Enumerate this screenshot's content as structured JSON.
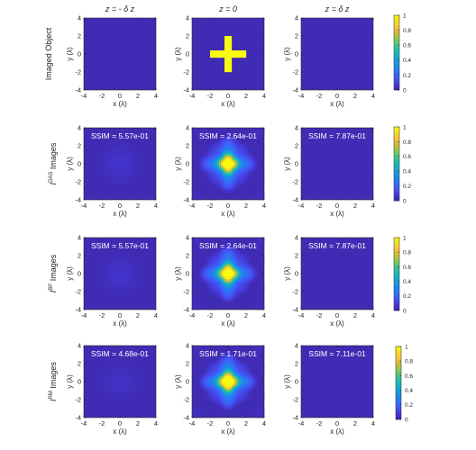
{
  "colors": {
    "background": "#ffffff",
    "axis": "#262626",
    "ssim_text": "#ffffff",
    "colormap": [
      "#3e26a8",
      "#4538d6",
      "#4254f3",
      "#3170fb",
      "#1d88e5",
      "#1a9ddb",
      "#10b0c8",
      "#22bea9",
      "#55c67d",
      "#98c54d",
      "#d4bb37",
      "#fcc43a",
      "#f2dc23",
      "#f9fb0e"
    ]
  },
  "chart_data": {
    "type": "heatmap",
    "layout": "4x3 grid of image panels, each row with its own colorbar",
    "column_titles": [
      "z = - δ z",
      "z = 0",
      "z = δ z"
    ],
    "x_axis": {
      "label": "x (λ)",
      "range": [
        -4,
        4
      ],
      "ticks": [
        -4,
        -2,
        0,
        2,
        4
      ]
    },
    "y_axis": {
      "label": "y (λ)",
      "range": [
        -4,
        4
      ],
      "ticks": [
        -4,
        -2,
        0,
        2,
        4
      ]
    },
    "colorbar": {
      "range": [
        0,
        1
      ],
      "ticks": [
        0,
        0.2,
        0.4,
        0.6,
        0.8,
        1
      ],
      "tick_labels": [
        "0",
        "0.2",
        "0.4",
        "0.6",
        "0.8",
        "1"
      ]
    },
    "object": {
      "shape": "cross",
      "center": [
        0,
        0
      ],
      "arm_half_length": 2.0,
      "arm_half_width": 0.35
    },
    "rows": [
      {
        "name": "imaged-object",
        "ylabel": {
          "main": "Imaged Object",
          "sup": ""
        },
        "panels": [
          {
            "column": "z = - δ z",
            "ssim": "",
            "peak": 0.0
          },
          {
            "column": "z = 0",
            "ssim": "",
            "peak": 1.0
          },
          {
            "column": "z = δ z",
            "ssim": "",
            "peak": 0.0
          }
        ]
      },
      {
        "name": "das",
        "ylabel": {
          "main": "I",
          "sup": "DAS",
          "after": " Images"
        },
        "panels": [
          {
            "column": "z = - δ z",
            "ssim": "SSIM = 5.57e-01",
            "peak": 0.04
          },
          {
            "column": "z = 0",
            "ssim": "SSIM = 2.64e-01",
            "peak": 1.0
          },
          {
            "column": "z = δ z",
            "ssim": "SSIM = 7.87e-01",
            "peak": 0.0
          }
        ]
      },
      {
        "name": "bp",
        "ylabel": {
          "main": "I",
          "sup": "BP",
          "after": " Images"
        },
        "panels": [
          {
            "column": "z = - δ z",
            "ssim": "SSIM = 5.57e-01",
            "peak": 0.04
          },
          {
            "column": "z = 0",
            "ssim": "SSIM = 2.64e-01",
            "peak": 1.0
          },
          {
            "column": "z = δ z",
            "ssim": "SSIM = 7.87e-01",
            "peak": 0.0
          }
        ]
      },
      {
        "name": "rm",
        "ylabel": {
          "main": "I",
          "sup": "RM",
          "after": " Images"
        },
        "panels": [
          {
            "column": "z = - δ z",
            "ssim": "SSIM = 4.68e-01",
            "peak": 0.03
          },
          {
            "column": "z = 0",
            "ssim": "SSIM = 1.71e-01",
            "peak": 1.0
          },
          {
            "column": "z = δ z",
            "ssim": "SSIM = 7.11e-01",
            "peak": 0.0
          }
        ]
      }
    ]
  }
}
